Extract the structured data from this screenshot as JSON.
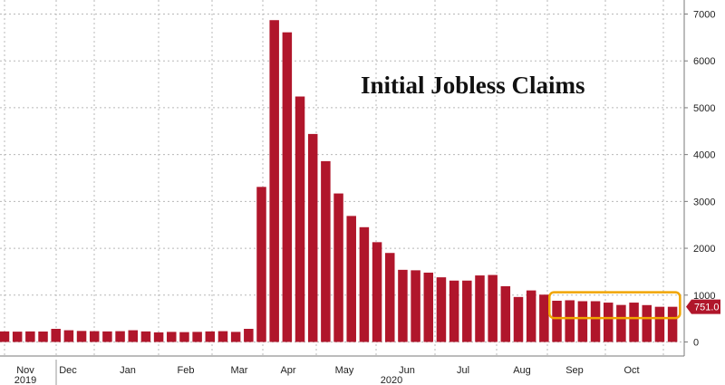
{
  "chart_data": {
    "type": "bar",
    "title": "Initial Jobless Claims",
    "xlabel": "",
    "ylabel": "",
    "ylim": [
      -300,
      7300
    ],
    "y_ticks": [
      0,
      1000,
      2000,
      3000,
      4000,
      5000,
      6000,
      7000
    ],
    "y_tick_labels": [
      "0",
      "1000",
      "2000",
      "3000",
      "4000",
      "5000",
      "6000",
      "7000"
    ],
    "y_axis_side": "right",
    "grid": true,
    "month_labels": [
      "Nov",
      "Dec",
      "Jan",
      "Feb",
      "Mar",
      "Apr",
      "May",
      "Jun",
      "Jul",
      "Aug",
      "Sep",
      "Oct"
    ],
    "year_labels": [
      "2019",
      "2020"
    ],
    "last_value_label": "751.0",
    "highlight_box_note": "orange box around Sep–Oct bars",
    "values": [
      225,
      220,
      225,
      223,
      280,
      250,
      235,
      230,
      225,
      230,
      250,
      225,
      205,
      215,
      210,
      215,
      225,
      230,
      215,
      280,
      3310,
      6870,
      6610,
      5240,
      4440,
      3860,
      3170,
      2690,
      2450,
      2130,
      1900,
      1540,
      1530,
      1480,
      1380,
      1310,
      1310,
      1420,
      1430,
      1190,
      960,
      1100,
      1010,
      880,
      890,
      870,
      870,
      840,
      790,
      840,
      787,
      751,
      751
    ],
    "series": [
      {
        "name": "",
        "color": "#b0162b"
      }
    ],
    "colors": {
      "bar": "#b0162b",
      "highlight": "#f0a500",
      "last_label_bg": "#b0162b",
      "grid": "#b8b8b8"
    }
  }
}
